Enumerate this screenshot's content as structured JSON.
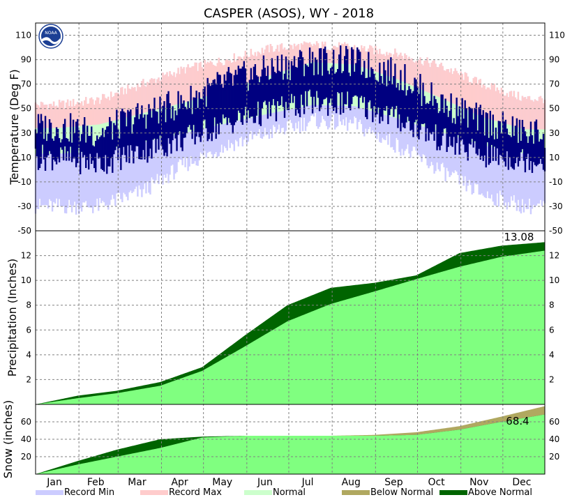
{
  "chart_data": {
    "type": "area",
    "title": "CASPER (ASOS), WY - 2018",
    "months": [
      "Jan",
      "Feb",
      "Mar",
      "Apr",
      "May",
      "Jun",
      "Jul",
      "Aug",
      "Sep",
      "Oct",
      "Nov",
      "Dec"
    ],
    "colors": {
      "record_min": "#ccccff",
      "record_max": "#ffcccc",
      "normal": "#ccffcc",
      "observed_temp": "#000080",
      "normal_precip": "#80ff80",
      "above_normal": "#006400",
      "below_normal": "#b0a860"
    },
    "legend": {
      "placement": "bottom",
      "items": [
        {
          "label": "Record Min",
          "color": "#ccccff"
        },
        {
          "label": "Record Max",
          "color": "#ffcccc"
        },
        {
          "label": "Normal",
          "color": "#ccffcc"
        },
        {
          "label": "Below Normal",
          "color": "#b0a860"
        },
        {
          "label": "Above Normal",
          "color": "#006400"
        }
      ]
    },
    "noaa_logo_text": "NOAA",
    "grid": true,
    "panels": [
      {
        "id": "temperature",
        "ylabel": "Temperature (Deg F)",
        "ylim": [
          -50,
          120
        ],
        "yticks": [
          -50,
          -30,
          -10,
          10,
          30,
          50,
          70,
          90,
          110
        ],
        "yticks_right": [
          -50,
          -30,
          -10,
          10,
          30,
          50,
          70,
          90,
          110
        ],
        "monthly_mean": {
          "record_max": [
            53,
            57,
            70,
            82,
            90,
            99,
            102,
            100,
            95,
            85,
            70,
            58
          ],
          "normal_max": [
            34,
            37,
            46,
            55,
            65,
            77,
            88,
            86,
            74,
            59,
            43,
            33
          ],
          "normal_min": [
            13,
            15,
            22,
            30,
            38,
            46,
            53,
            52,
            42,
            31,
            20,
            13
          ],
          "record_min": [
            -30,
            -30,
            -18,
            4,
            20,
            30,
            40,
            37,
            20,
            0,
            -20,
            -30
          ],
          "observed_max": [
            35,
            30,
            45,
            55,
            72,
            82,
            90,
            88,
            78,
            55,
            40,
            30
          ],
          "observed_min": [
            10,
            5,
            15,
            25,
            38,
            48,
            55,
            54,
            42,
            25,
            12,
            8
          ]
        }
      },
      {
        "id": "precipitation",
        "ylabel": "Precipitation (Inches)",
        "ylim": [
          0,
          14
        ],
        "yticks": [
          2,
          4,
          6,
          8,
          10,
          12
        ],
        "yticks_right": [
          2,
          4,
          6,
          8,
          10,
          12
        ],
        "x": [
          1,
          31,
          59,
          90,
          120,
          151,
          181,
          212,
          243,
          273,
          304,
          334,
          365
        ],
        "normal_cumulative": [
          0.0,
          0.5,
          0.9,
          1.5,
          2.7,
          4.7,
          6.7,
          8.1,
          9.1,
          10.1,
          11.1,
          11.9,
          12.4
        ],
        "observed_cumulative": [
          0.0,
          0.7,
          1.1,
          1.8,
          3.0,
          5.6,
          8.0,
          9.4,
          9.8,
          10.4,
          12.2,
          12.8,
          13.08
        ],
        "total_label": "13.08"
      },
      {
        "id": "snow",
        "ylabel": "Snow (inches)",
        "ylim": [
          0,
          80
        ],
        "yticks": [
          20,
          40,
          60
        ],
        "yticks_right": [
          20,
          40,
          60
        ],
        "x": [
          1,
          31,
          59,
          90,
          120,
          151,
          181,
          212,
          243,
          273,
          304,
          334,
          365
        ],
        "normal_cumulative": [
          0,
          11,
          20,
          30,
          42,
          44,
          44,
          44,
          45,
          48,
          55,
          66,
          78
        ],
        "observed_cumulative": [
          0,
          15,
          28,
          40,
          43,
          44,
          44,
          44,
          44,
          45,
          51,
          60,
          68.4
        ],
        "total_label": "68.4"
      }
    ]
  }
}
